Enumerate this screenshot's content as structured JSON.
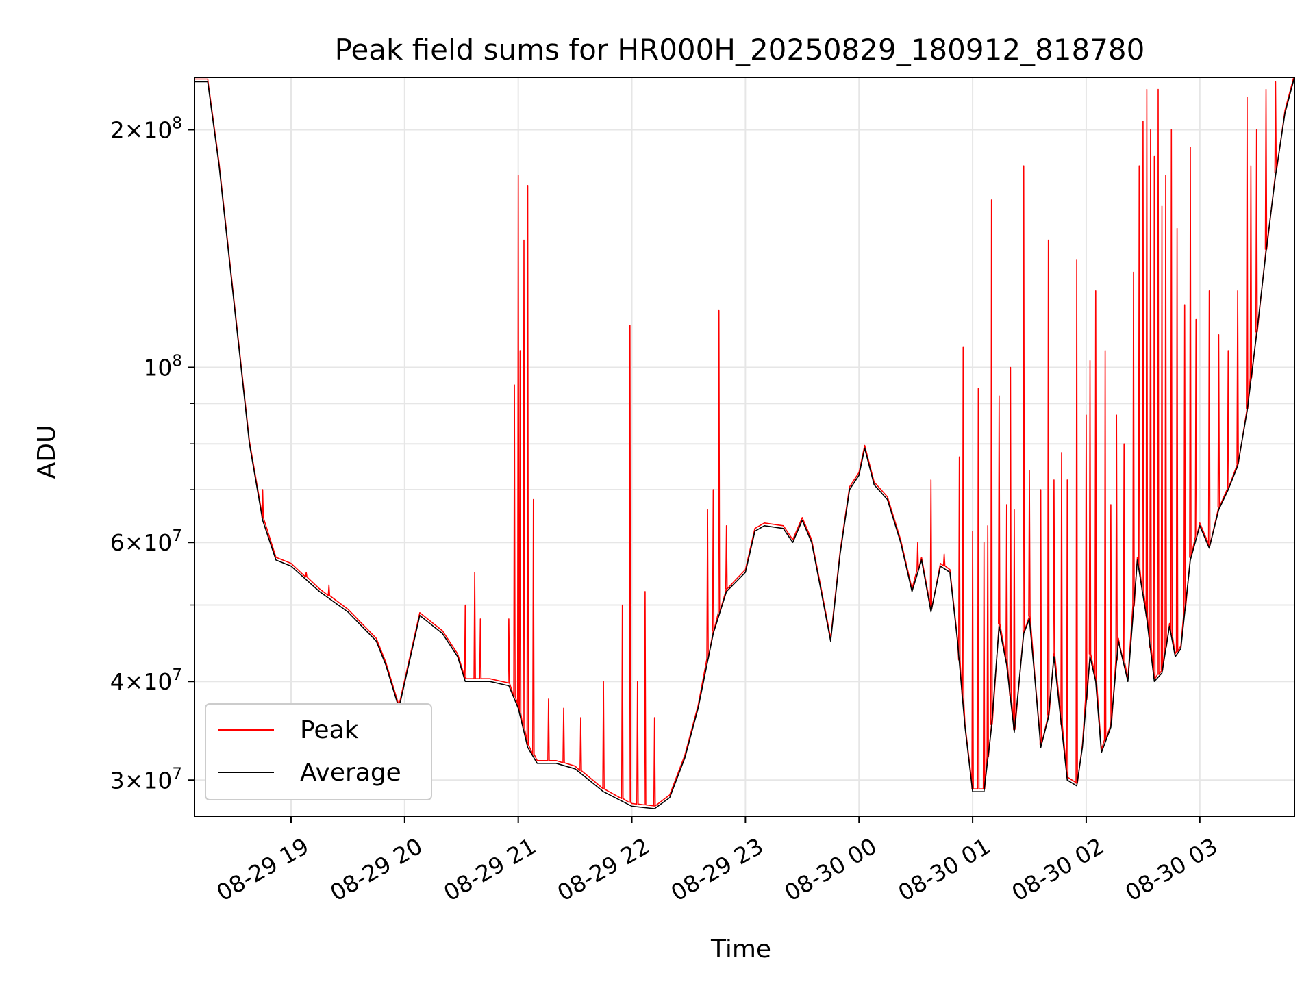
{
  "chart_data": {
    "type": "line",
    "title": "Peak field sums for HR000H_20250829_180912_818780",
    "xlabel": "Time",
    "ylabel": "ADU",
    "yscale": "log",
    "ylim": [
      27000000,
      233000000
    ],
    "xlim": [
      "2025-08-29 18:09",
      "2025-08-30 03:50"
    ],
    "grid": true,
    "legend_position": "lower-left",
    "x_ticks": [
      {
        "t": "2025-08-29 19:00",
        "label": "08-29 19"
      },
      {
        "t": "2025-08-29 20:00",
        "label": "08-29 20"
      },
      {
        "t": "2025-08-29 21:00",
        "label": "08-29 21"
      },
      {
        "t": "2025-08-29 22:00",
        "label": "08-29 22"
      },
      {
        "t": "2025-08-29 23:00",
        "label": "08-29 23"
      },
      {
        "t": "2025-08-30 00:00",
        "label": "08-30 00"
      },
      {
        "t": "2025-08-30 01:00",
        "label": "08-30 01"
      },
      {
        "t": "2025-08-30 02:00",
        "label": "08-30 02"
      },
      {
        "t": "2025-08-30 03:00",
        "label": "08-30 03"
      }
    ],
    "y_major_ticks": [
      {
        "value": 30000000,
        "mant": "3",
        "exp": "7"
      },
      {
        "value": 40000000,
        "mant": "4",
        "exp": "7"
      },
      {
        "value": 60000000,
        "mant": "6",
        "exp": "7"
      },
      {
        "value": 100000000,
        "mant": "",
        "exp": "8"
      },
      {
        "value": 200000000,
        "mant": "2",
        "exp": "8"
      }
    ],
    "y_minor_ticks": [
      50000000,
      70000000,
      80000000,
      90000000
    ],
    "series": [
      {
        "name": "Average",
        "color": "#000000",
        "points": [
          [
            "2025-08-29 18:09",
            230000000
          ],
          [
            "2025-08-29 18:16",
            230000000
          ],
          [
            "2025-08-29 18:22",
            180000000
          ],
          [
            "2025-08-29 18:30",
            120000000
          ],
          [
            "2025-08-29 18:38",
            80000000
          ],
          [
            "2025-08-29 18:45",
            64000000
          ],
          [
            "2025-08-29 18:52",
            57000000
          ],
          [
            "2025-08-29 19:00",
            56000000
          ],
          [
            "2025-08-29 19:15",
            52000000
          ],
          [
            "2025-08-29 19:30",
            49000000
          ],
          [
            "2025-08-29 19:45",
            45000000
          ],
          [
            "2025-08-29 19:50",
            42000000
          ],
          [
            "2025-08-29 19:57",
            37000000
          ],
          [
            "2025-08-29 20:08",
            48500000
          ],
          [
            "2025-08-29 20:20",
            46000000
          ],
          [
            "2025-08-29 20:28",
            43000000
          ],
          [
            "2025-08-29 20:32",
            40000000
          ],
          [
            "2025-08-29 20:45",
            40000000
          ],
          [
            "2025-08-29 20:55",
            39500000
          ],
          [
            "2025-08-29 21:00",
            37000000
          ],
          [
            "2025-08-29 21:05",
            33000000
          ],
          [
            "2025-08-29 21:10",
            31500000
          ],
          [
            "2025-08-29 21:20",
            31500000
          ],
          [
            "2025-08-29 21:30",
            31000000
          ],
          [
            "2025-08-29 21:45",
            29000000
          ],
          [
            "2025-08-29 22:00",
            27800000
          ],
          [
            "2025-08-29 22:12",
            27600000
          ],
          [
            "2025-08-29 22:20",
            28500000
          ],
          [
            "2025-08-29 22:28",
            32000000
          ],
          [
            "2025-08-29 22:35",
            37000000
          ],
          [
            "2025-08-29 22:43",
            46000000
          ],
          [
            "2025-08-29 22:50",
            52000000
          ],
          [
            "2025-08-29 23:00",
            55000000
          ],
          [
            "2025-08-29 23:05",
            62000000
          ],
          [
            "2025-08-29 23:10",
            63000000
          ],
          [
            "2025-08-29 23:20",
            62500000
          ],
          [
            "2025-08-29 23:25",
            60000000
          ],
          [
            "2025-08-29 23:30",
            64000000
          ],
          [
            "2025-08-29 23:35",
            60000000
          ],
          [
            "2025-08-29 23:40",
            52000000
          ],
          [
            "2025-08-29 23:45",
            45000000
          ],
          [
            "2025-08-29 23:50",
            58000000
          ],
          [
            "2025-08-29 23:55",
            70000000
          ],
          [
            "2025-08-30 00:00",
            73000000
          ],
          [
            "2025-08-30 00:03",
            79000000
          ],
          [
            "2025-08-30 00:08",
            71000000
          ],
          [
            "2025-08-30 00:15",
            68000000
          ],
          [
            "2025-08-30 00:22",
            60000000
          ],
          [
            "2025-08-30 00:28",
            52000000
          ],
          [
            "2025-08-30 00:33",
            57000000
          ],
          [
            "2025-08-30 00:38",
            49000000
          ],
          [
            "2025-08-30 00:43",
            56000000
          ],
          [
            "2025-08-30 00:48",
            55000000
          ],
          [
            "2025-08-30 00:52",
            45000000
          ],
          [
            "2025-08-30 00:56",
            35000000
          ],
          [
            "2025-08-30 01:00",
            29000000
          ],
          [
            "2025-08-30 01:06",
            29000000
          ],
          [
            "2025-08-30 01:10",
            35000000
          ],
          [
            "2025-08-30 01:14",
            47000000
          ],
          [
            "2025-08-30 01:18",
            42000000
          ],
          [
            "2025-08-30 01:22",
            34500000
          ],
          [
            "2025-08-30 01:27",
            46000000
          ],
          [
            "2025-08-30 01:30",
            48000000
          ],
          [
            "2025-08-30 01:33",
            40000000
          ],
          [
            "2025-08-30 01:36",
            33000000
          ],
          [
            "2025-08-30 01:40",
            36000000
          ],
          [
            "2025-08-30 01:43",
            43000000
          ],
          [
            "2025-08-30 01:47",
            35000000
          ],
          [
            "2025-08-30 01:50",
            30000000
          ],
          [
            "2025-08-30 01:55",
            29500000
          ],
          [
            "2025-08-30 01:58",
            33000000
          ],
          [
            "2025-08-30 02:02",
            43000000
          ],
          [
            "2025-08-30 02:05",
            40000000
          ],
          [
            "2025-08-30 02:08",
            32500000
          ],
          [
            "2025-08-30 02:13",
            35000000
          ],
          [
            "2025-08-30 02:17",
            45000000
          ],
          [
            "2025-08-30 02:22",
            40000000
          ],
          [
            "2025-08-30 02:27",
            57000000
          ],
          [
            "2025-08-30 02:32",
            48000000
          ],
          [
            "2025-08-30 02:36",
            40000000
          ],
          [
            "2025-08-30 02:40",
            41000000
          ],
          [
            "2025-08-30 02:44",
            47000000
          ],
          [
            "2025-08-30 02:47",
            43000000
          ],
          [
            "2025-08-30 02:50",
            44000000
          ],
          [
            "2025-08-30 02:55",
            57000000
          ],
          [
            "2025-08-30 03:00",
            63000000
          ],
          [
            "2025-08-30 03:05",
            59000000
          ],
          [
            "2025-08-30 03:10",
            66000000
          ],
          [
            "2025-08-30 03:15",
            70000000
          ],
          [
            "2025-08-30 03:20",
            75000000
          ],
          [
            "2025-08-30 03:25",
            88000000
          ],
          [
            "2025-08-30 03:30",
            110000000
          ],
          [
            "2025-08-30 03:35",
            140000000
          ],
          [
            "2025-08-30 03:40",
            175000000
          ],
          [
            "2025-08-30 03:45",
            210000000
          ],
          [
            "2025-08-30 03:50",
            233000000
          ]
        ]
      },
      {
        "name": "Peak",
        "color": "#ff0000",
        "spikes": [
          [
            "2025-08-29 18:45",
            70000000
          ],
          [
            "2025-08-29 19:08",
            55000000
          ],
          [
            "2025-08-29 19:20",
            53000000
          ],
          [
            "2025-08-29 20:32",
            50000000
          ],
          [
            "2025-08-29 20:37",
            55000000
          ],
          [
            "2025-08-29 20:40",
            48000000
          ],
          [
            "2025-08-29 20:55",
            48000000
          ],
          [
            "2025-08-29 20:58",
            95000000
          ],
          [
            "2025-08-29 21:00",
            175000000
          ],
          [
            "2025-08-29 21:01",
            105000000
          ],
          [
            "2025-08-29 21:03",
            145000000
          ],
          [
            "2025-08-29 21:05",
            170000000
          ],
          [
            "2025-08-29 21:08",
            68000000
          ],
          [
            "2025-08-29 21:16",
            38000000
          ],
          [
            "2025-08-29 21:24",
            37000000
          ],
          [
            "2025-08-29 21:33",
            36000000
          ],
          [
            "2025-08-29 21:45",
            40000000
          ],
          [
            "2025-08-29 21:55",
            50000000
          ],
          [
            "2025-08-29 21:59",
            113000000
          ],
          [
            "2025-08-29 22:03",
            40000000
          ],
          [
            "2025-08-29 22:07",
            52000000
          ],
          [
            "2025-08-29 22:12",
            36000000
          ],
          [
            "2025-08-29 22:40",
            66000000
          ],
          [
            "2025-08-29 22:43",
            70000000
          ],
          [
            "2025-08-29 22:46",
            118000000
          ],
          [
            "2025-08-29 22:50",
            63000000
          ],
          [
            "2025-08-30 00:31",
            60000000
          ],
          [
            "2025-08-30 00:38",
            72000000
          ],
          [
            "2025-08-30 00:45",
            58000000
          ],
          [
            "2025-08-30 00:53",
            77000000
          ],
          [
            "2025-08-30 00:55",
            106000000
          ],
          [
            "2025-08-30 01:00",
            62000000
          ],
          [
            "2025-08-30 01:03",
            94000000
          ],
          [
            "2025-08-30 01:06",
            60000000
          ],
          [
            "2025-08-30 01:08",
            63000000
          ],
          [
            "2025-08-30 01:10",
            163000000
          ],
          [
            "2025-08-30 01:14",
            92000000
          ],
          [
            "2025-08-30 01:18",
            67000000
          ],
          [
            "2025-08-30 01:20",
            100000000
          ],
          [
            "2025-08-30 01:22",
            66000000
          ],
          [
            "2025-08-30 01:27",
            180000000
          ],
          [
            "2025-08-30 01:30",
            74000000
          ],
          [
            "2025-08-30 01:36",
            70000000
          ],
          [
            "2025-08-30 01:40",
            145000000
          ],
          [
            "2025-08-30 01:43",
            72000000
          ],
          [
            "2025-08-30 01:47",
            78000000
          ],
          [
            "2025-08-30 01:50",
            72000000
          ],
          [
            "2025-08-30 01:55",
            137000000
          ],
          [
            "2025-08-30 02:00",
            87000000
          ],
          [
            "2025-08-30 02:02",
            102000000
          ],
          [
            "2025-08-30 02:05",
            125000000
          ],
          [
            "2025-08-30 02:10",
            105000000
          ],
          [
            "2025-08-30 02:13",
            67000000
          ],
          [
            "2025-08-30 02:16",
            87000000
          ],
          [
            "2025-08-30 02:20",
            80000000
          ],
          [
            "2025-08-30 02:25",
            132000000
          ],
          [
            "2025-08-30 02:28",
            180000000
          ],
          [
            "2025-08-30 02:30",
            205000000
          ],
          [
            "2025-08-30 02:32",
            225000000
          ],
          [
            "2025-08-30 02:34",
            200000000
          ],
          [
            "2025-08-30 02:36",
            185000000
          ],
          [
            "2025-08-30 02:38",
            225000000
          ],
          [
            "2025-08-30 02:40",
            160000000
          ],
          [
            "2025-08-30 02:42",
            175000000
          ],
          [
            "2025-08-30 02:45",
            200000000
          ],
          [
            "2025-08-30 02:48",
            150000000
          ],
          [
            "2025-08-30 02:52",
            120000000
          ],
          [
            "2025-08-30 02:55",
            190000000
          ],
          [
            "2025-08-30 02:58",
            115000000
          ],
          [
            "2025-08-30 03:05",
            125000000
          ],
          [
            "2025-08-30 03:10",
            110000000
          ],
          [
            "2025-08-30 03:15",
            105000000
          ],
          [
            "2025-08-30 03:20",
            125000000
          ],
          [
            "2025-08-30 03:25",
            220000000
          ],
          [
            "2025-08-30 03:27",
            180000000
          ],
          [
            "2025-08-30 03:30",
            200000000
          ],
          [
            "2025-08-30 03:35",
            225000000
          ],
          [
            "2025-08-30 03:40",
            230000000
          ]
        ]
      }
    ]
  }
}
